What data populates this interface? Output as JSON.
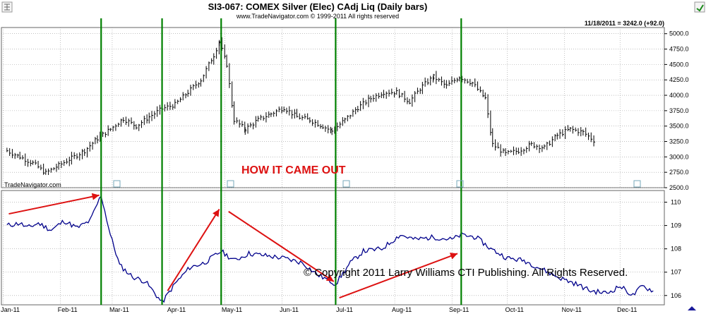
{
  "header": {
    "title": "SI3-067:  COMEX Silver (Elec) CAdj Liq  (Daily bars)",
    "subtitle": "www.TradeNavigator.com © 1999-2011 All rights reserved",
    "readout": "11/18/2011 = 3242.0 (+92.0)",
    "brand": "TradeNavigator.com",
    "annotation": "HOW IT CAME OUT",
    "copyright": "© Copyright 2011 Larry Williams CTI Publishing. All Rights Reserved."
  },
  "colors": {
    "price_bars": "#000000",
    "indicator_line": "#00008b",
    "vertical_markers": "#008000",
    "arrows": "#dd1111",
    "annotation_text": "#dd1111",
    "grid": "#9a9a9a"
  },
  "chart_data": [
    {
      "type": "bar",
      "name": "price",
      "title": "SI3-067:  COMEX Silver (Elec) CAdj Liq  (Daily bars)",
      "ylim": [
        2500,
        5100
      ],
      "yticks": [
        2500,
        2750,
        3000,
        3250,
        3500,
        3750,
        4000,
        4250,
        4500,
        4750,
        5000
      ],
      "ytick_labels": [
        "2500.0",
        "2750.0",
        "3000.0",
        "3250.0",
        "3500.0",
        "3750.0",
        "4000.0",
        "4250.0",
        "4500.0",
        "4750.0",
        "5000.0"
      ],
      "grid": true,
      "series": [
        {
          "name": "",
          "points": [
            [
              "2011-01-03",
              3100
            ],
            [
              "2011-01-10",
              3000
            ],
            [
              "2011-01-17",
              2900
            ],
            [
              "2011-01-24",
              2740
            ],
            [
              "2011-01-31",
              2860
            ],
            [
              "2011-02-07",
              2980
            ],
            [
              "2011-02-14",
              3100
            ],
            [
              "2011-02-21",
              3300
            ],
            [
              "2011-02-28",
              3450
            ],
            [
              "2011-03-07",
              3620
            ],
            [
              "2011-03-14",
              3500
            ],
            [
              "2011-03-21",
              3650
            ],
            [
              "2011-03-28",
              3780
            ],
            [
              "2011-04-04",
              3850
            ],
            [
              "2011-04-11",
              4050
            ],
            [
              "2011-04-18",
              4250
            ],
            [
              "2011-04-25",
              4650
            ],
            [
              "2011-04-28",
              4870
            ],
            [
              "2011-05-02",
              4500
            ],
            [
              "2011-05-06",
              3600
            ],
            [
              "2011-05-12",
              3450
            ],
            [
              "2011-05-19",
              3600
            ],
            [
              "2011-05-26",
              3700
            ],
            [
              "2011-06-02",
              3800
            ],
            [
              "2011-06-09",
              3650
            ],
            [
              "2011-06-16",
              3600
            ],
            [
              "2011-06-23",
              3500
            ],
            [
              "2011-06-28",
              3420
            ],
            [
              "2011-07-05",
              3600
            ],
            [
              "2011-07-12",
              3800
            ],
            [
              "2011-07-19",
              3950
            ],
            [
              "2011-07-26",
              4050
            ],
            [
              "2011-08-02",
              4050
            ],
            [
              "2011-08-09",
              3900
            ],
            [
              "2011-08-16",
              4150
            ],
            [
              "2011-08-22",
              4300
            ],
            [
              "2011-08-29",
              4150
            ],
            [
              "2011-09-05",
              4300
            ],
            [
              "2011-09-12",
              4200
            ],
            [
              "2011-09-19",
              3950
            ],
            [
              "2011-09-23",
              3200
            ],
            [
              "2011-09-30",
              3050
            ],
            [
              "2011-10-07",
              3100
            ],
            [
              "2011-10-14",
              3200
            ],
            [
              "2011-10-21",
              3150
            ],
            [
              "2011-10-28",
              3350
            ],
            [
              "2011-11-04",
              3450
            ],
            [
              "2011-11-11",
              3400
            ],
            [
              "2011-11-18",
              3242
            ]
          ]
        }
      ]
    },
    {
      "type": "line",
      "name": "indicator",
      "ylim": [
        105.6,
        110.5
      ],
      "yticks": [
        106,
        107,
        108,
        109,
        110
      ],
      "ytick_labels": [
        "106",
        "107",
        "108",
        "109",
        "110"
      ],
      "xlim": [
        "2010-12-31",
        "2011-12-25"
      ],
      "xticks": [
        "2011-01-01",
        "2011-02-01",
        "2011-03-01",
        "2011-04-01",
        "2011-05-01",
        "2011-06-01",
        "2011-07-01",
        "2011-08-01",
        "2011-09-01",
        "2011-10-01",
        "2011-11-01",
        "2011-12-01"
      ],
      "xtick_labels": [
        "Jan-11",
        "Feb-11",
        "Mar-11",
        "Apr-11",
        "May-11",
        "Jun-11",
        "Jul-11",
        "Aug-11",
        "Sep-11",
        "Oct-11",
        "Nov-11",
        "Dec-11"
      ],
      "grid": true,
      "series": [
        {
          "name": "",
          "points": [
            [
              "2011-01-03",
              109.0
            ],
            [
              "2011-01-10",
              109.1
            ],
            [
              "2011-01-14",
              108.9
            ],
            [
              "2011-01-20",
              109.1
            ],
            [
              "2011-01-27",
              108.8
            ],
            [
              "2011-02-03",
              109.2
            ],
            [
              "2011-02-10",
              108.9
            ],
            [
              "2011-02-17",
              109.2
            ],
            [
              "2011-02-23",
              110.3
            ],
            [
              "2011-02-28",
              108.6
            ],
            [
              "2011-03-05",
              107.3
            ],
            [
              "2011-03-12",
              106.8
            ],
            [
              "2011-03-19",
              106.6
            ],
            [
              "2011-03-28",
              105.7
            ],
            [
              "2011-04-04",
              106.5
            ],
            [
              "2011-04-12",
              107.2
            ],
            [
              "2011-04-20",
              107.4
            ],
            [
              "2011-04-29",
              107.9
            ],
            [
              "2011-05-06",
              107.5
            ],
            [
              "2011-05-14",
              107.8
            ],
            [
              "2011-05-24",
              107.7
            ],
            [
              "2011-06-02",
              107.6
            ],
            [
              "2011-06-12",
              107.4
            ],
            [
              "2011-06-20",
              106.9
            ],
            [
              "2011-06-30",
              106.5
            ],
            [
              "2011-07-08",
              107.4
            ],
            [
              "2011-07-15",
              107.9
            ],
            [
              "2011-07-25",
              108.0
            ],
            [
              "2011-08-04",
              108.6
            ],
            [
              "2011-08-12",
              108.4
            ],
            [
              "2011-08-22",
              108.5
            ],
            [
              "2011-09-01",
              108.4
            ],
            [
              "2011-09-06",
              108.6
            ],
            [
              "2011-09-14",
              108.5
            ],
            [
              "2011-09-22",
              108.0
            ],
            [
              "2011-10-01",
              107.6
            ],
            [
              "2011-10-10",
              107.5
            ],
            [
              "2011-10-18",
              107.2
            ],
            [
              "2011-10-28",
              106.8
            ],
            [
              "2011-11-07",
              106.5
            ],
            [
              "2011-11-15",
              106.2
            ],
            [
              "2011-11-24",
              106.1
            ],
            [
              "2011-12-01",
              106.4
            ],
            [
              "2011-12-08",
              106.0
            ],
            [
              "2011-12-13",
              106.4
            ],
            [
              "2011-12-19",
              106.2
            ]
          ]
        }
      ],
      "arrows": [
        {
          "from": [
            "2011-01-04",
            109.5
          ],
          "to": [
            "2011-02-22",
            110.3
          ]
        },
        {
          "from": [
            "2011-03-31",
            106.2
          ],
          "to": [
            "2011-04-28",
            109.7
          ]
        },
        {
          "from": [
            "2011-05-03",
            109.6
          ],
          "to": [
            "2011-06-29",
            106.6
          ]
        },
        {
          "from": [
            "2011-07-02",
            105.9
          ],
          "to": [
            "2011-09-04",
            107.8
          ]
        }
      ]
    }
  ],
  "vertical_markers": [
    "2011-02-23",
    "2011-03-28",
    "2011-04-29",
    "2011-06-30",
    "2011-09-06"
  ]
}
